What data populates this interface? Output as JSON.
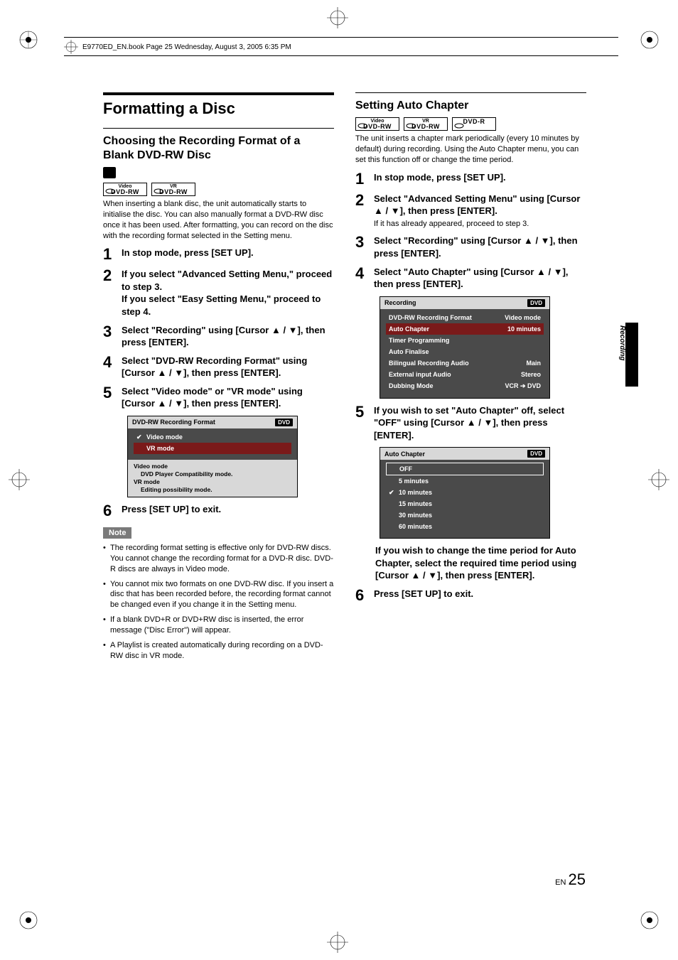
{
  "printHeader": "E9770ED_EN.book  Page 25  Wednesday, August 3, 2005  6:35 PM",
  "sideLabel": "Recording",
  "pageLang": "EN",
  "pageNum": "25",
  "left": {
    "title": "Formatting a Disc",
    "subtitle": "Choosing the Recording Format of a Blank DVD-RW Disc",
    "badges": [
      {
        "top": "Video",
        "bot": "DVD-RW"
      },
      {
        "top": "VR",
        "bot": "DVD-RW"
      }
    ],
    "intro": "When inserting a blank disc, the unit automatically starts to initialise the disc. You can also manually format a DVD-RW disc once it has been used. After formatting, you can record on the disc with the recording format selected in the Setting menu.",
    "steps": [
      {
        "n": "1",
        "t": "In stop mode, press [SET UP]."
      },
      {
        "n": "2",
        "t": "If you select \"Advanced Setting Menu,\" proceed to step 3.\nIf you select \"Easy Setting Menu,\" proceed to step 4."
      },
      {
        "n": "3",
        "t": "Select \"Recording\" using [Cursor ▲ / ▼], then press [ENTER]."
      },
      {
        "n": "4",
        "t": "Select \"DVD-RW Recording Format\" using [Cursor ▲ / ▼], then press [ENTER]."
      },
      {
        "n": "5",
        "t": "Select \"Video mode\" or \"VR mode\" using [Cursor ▲ / ▼], then press [ENTER]."
      },
      {
        "n": "6",
        "t": "Press [SET UP] to exit."
      }
    ],
    "menu": {
      "title": "DVD-RW Recording Format",
      "tag": "DVD",
      "rows": [
        {
          "label": "Video mode",
          "checked": true,
          "sel": false
        },
        {
          "label": "VR mode",
          "checked": false,
          "sel": true
        }
      ],
      "footer": [
        {
          "bold": "Video mode",
          "indent": false
        },
        {
          "bold": "DVD Player Compatibility mode.",
          "indent": true
        },
        {
          "bold": "VR mode",
          "indent": false
        },
        {
          "bold": "Editing possibility mode.",
          "indent": true
        }
      ]
    },
    "noteLabel": "Note",
    "notes": [
      "The recording format setting is effective only for DVD-RW discs. You cannot change the recording format for a DVD-R disc. DVD-R discs are always in Video mode.",
      "You cannot mix two formats on one DVD-RW disc. If you insert a disc that has been recorded before, the recording format cannot be changed even if you change it in the Setting menu.",
      "If a blank DVD+R or DVD+RW disc is inserted, the error message (\"Disc Error\") will appear.",
      "A Playlist is created automatically during recording on a DVD-RW disc in VR mode."
    ]
  },
  "right": {
    "subtitle": "Setting Auto Chapter",
    "badges": [
      {
        "top": "Video",
        "bot": "DVD-RW"
      },
      {
        "top": "VR",
        "bot": "DVD-RW"
      },
      {
        "top": "",
        "bot": "DVD-R"
      }
    ],
    "intro": "The unit inserts a chapter mark periodically (every 10 minutes by default) during recording. Using the Auto Chapter menu, you can set this function off or change the time period.",
    "steps": [
      {
        "n": "1",
        "t": "In stop mode, press [SET UP]."
      },
      {
        "n": "2",
        "t": "Select \"Advanced Setting Menu\" using [Cursor ▲ / ▼], then press [ENTER].",
        "sub": "If it has already appeared, proceed to step 3."
      },
      {
        "n": "3",
        "t": "Select \"Recording\" using [Cursor ▲ / ▼], then press [ENTER]."
      },
      {
        "n": "4",
        "t": "Select \"Auto Chapter\" using [Cursor ▲ / ▼], then press [ENTER]."
      },
      {
        "n": "5",
        "t": "If you wish to set \"Auto Chapter\" off, select \"OFF\" using [Cursor ▲ / ▼], then press [ENTER]."
      },
      {
        "n": "6",
        "t": "Press [SET UP] to exit."
      }
    ],
    "menu1": {
      "title": "Recording",
      "tag": "DVD",
      "rows": [
        {
          "l": "DVD-RW Recording Format",
          "r": "Video mode",
          "sel": false
        },
        {
          "l": "Auto Chapter",
          "r": "10 minutes",
          "sel": true
        },
        {
          "l": "Timer Programming",
          "r": "",
          "sel": false
        },
        {
          "l": "Auto Finalise",
          "r": "",
          "sel": false
        },
        {
          "l": "Bilingual Recording Audio",
          "r": "Main",
          "sel": false
        },
        {
          "l": "External input Audio",
          "r": "Stereo",
          "sel": false
        },
        {
          "l": "Dubbing Mode",
          "r": "VCR ➔ DVD",
          "sel": false
        }
      ]
    },
    "afterMenu2": "If you wish to change the time period for Auto Chapter, select the required time period using [Cursor ▲ / ▼], then press [ENTER].",
    "menu2": {
      "title": "Auto Chapter",
      "tag": "DVD",
      "rows": [
        {
          "label": "OFF",
          "checked": false,
          "sel": true
        },
        {
          "label": "5 minutes",
          "checked": false,
          "sel": false
        },
        {
          "label": "10 minutes",
          "checked": true,
          "sel": false
        },
        {
          "label": "15 minutes",
          "checked": false,
          "sel": false
        },
        {
          "label": "30 minutes",
          "checked": false,
          "sel": false
        },
        {
          "label": "60 minutes",
          "checked": false,
          "sel": false
        }
      ]
    }
  },
  "colors": {
    "panelBg": "#4a4a4a",
    "panelHdr": "#d8d8d8",
    "selRow": "#7a1a1a",
    "noteTag": "#7a7a7a"
  }
}
